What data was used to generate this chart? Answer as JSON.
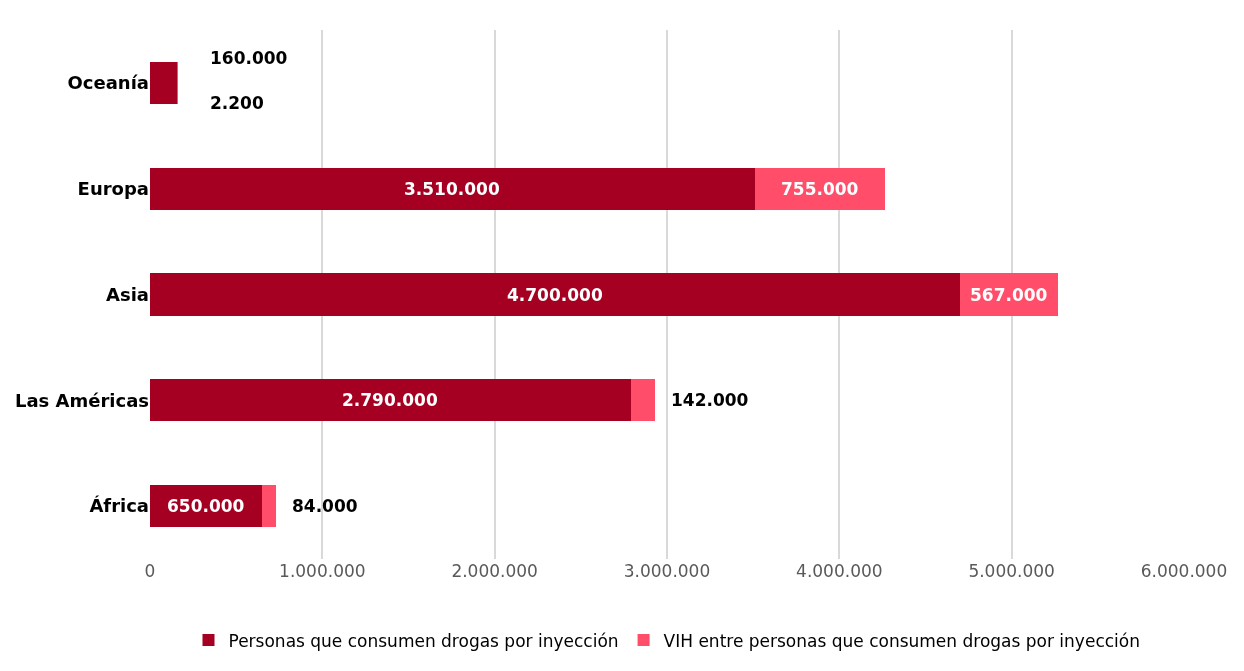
{
  "chart_data": {
    "type": "bar",
    "orientation": "horizontal",
    "stacked": true,
    "categories": [
      "Oceanía",
      "Europa",
      "Asia",
      "Las Américas",
      "África"
    ],
    "series": [
      {
        "name": "Personas que consumen drogas por inyección",
        "color": "#a50021",
        "values": [
          160000,
          3510000,
          4700000,
          2790000,
          650000
        ],
        "value_labels": [
          "160.000",
          "3.510.000",
          "4.700.000",
          "2.790.000",
          "650.000"
        ]
      },
      {
        "name": "VIH entre personas que consumen drogas por inyección",
        "color": "#ff4d6a",
        "values": [
          2200,
          755000,
          567000,
          142000,
          84000
        ],
        "value_labels": [
          "2.200",
          "755.000",
          "567.000",
          "142.000",
          "84.000"
        ]
      }
    ],
    "xlim": [
      0,
      6000000
    ],
    "xticks": [
      {
        "value": 0,
        "label": "0"
      },
      {
        "value": 1000000,
        "label": "1.000.000"
      },
      {
        "value": 2000000,
        "label": "2.000.000"
      },
      {
        "value": 3000000,
        "label": "3.000.000"
      },
      {
        "value": 4000000,
        "label": "4.000.000"
      },
      {
        "value": 5000000,
        "label": "5.000.000"
      },
      {
        "value": 6000000,
        "label": "6.000.000"
      }
    ],
    "grid": "x",
    "legend": "bottom"
  }
}
